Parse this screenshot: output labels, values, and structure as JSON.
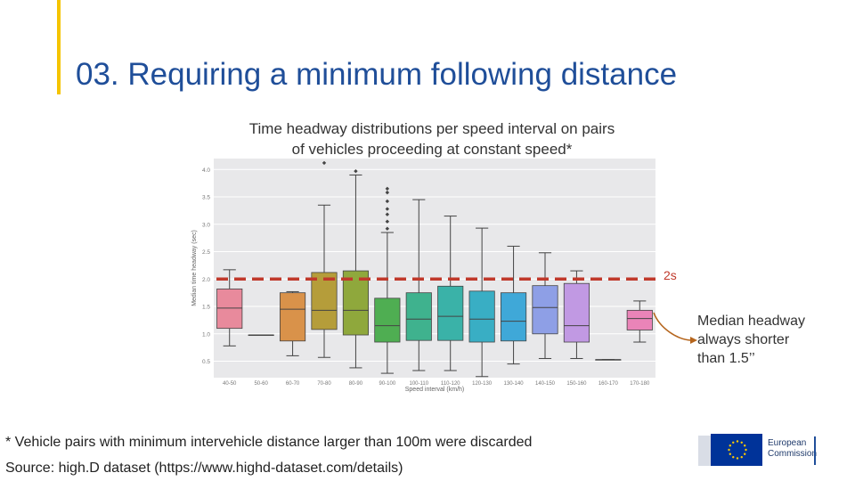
{
  "slide": {
    "title": "03. Requiring a minimum following distance",
    "caption_line1": "Time headway distributions per speed interval on pairs",
    "caption_line2": "of vehicles proceeding at constant speed*",
    "threshold_label": "2s",
    "callout_line1": "Median headway",
    "callout_line2": "always shorter",
    "callout_line3": "than 1.5’’",
    "footnote": "* Vehicle pairs with minimum intervehicle distance larger than 100m were discarded",
    "source": "Source: high.D dataset (https://www.highd-dataset.com/details)",
    "logo_line1": "European",
    "logo_line2": "Commission"
  },
  "chart_data": {
    "type": "box",
    "xlabel": "Speed interval (km/h)",
    "ylabel": "Median time headway (sec)",
    "ylim": [
      0.2,
      4.2
    ],
    "yticks": [
      "0.5",
      "1.0",
      "1.5",
      "2.0",
      "2.5",
      "3.0",
      "3.5",
      "4.0"
    ],
    "ytick_values": [
      0.5,
      1.0,
      1.5,
      2.0,
      2.5,
      3.0,
      3.5,
      4.0
    ],
    "grid": true,
    "threshold": 2.0,
    "categories": [
      "40-50",
      "50-60",
      "60-70",
      "70-80",
      "80-90",
      "90-100",
      "100-110",
      "110-120",
      "120-130",
      "130-140",
      "140-150",
      "150-160",
      "160-170",
      "170-180"
    ],
    "boxes": [
      {
        "min": 0.78,
        "q1": 1.1,
        "median": 1.47,
        "q3": 1.82,
        "max": 2.17,
        "outliers": [],
        "color": "#e88a9c"
      },
      {
        "min": 0.98,
        "q1": 0.98,
        "median": 0.98,
        "q3": 0.98,
        "max": 0.98,
        "outliers": [],
        "color": "#e39a5a"
      },
      {
        "min": 0.6,
        "q1": 0.87,
        "median": 1.45,
        "q3": 1.75,
        "max": 1.77,
        "outliers": [],
        "color": "#d9924a"
      },
      {
        "min": 0.57,
        "q1": 1.08,
        "median": 1.43,
        "q3": 2.12,
        "max": 3.35,
        "outliers": [
          4.12
        ],
        "color": "#b59d3a"
      },
      {
        "min": 0.38,
        "q1": 0.98,
        "median": 1.43,
        "q3": 2.15,
        "max": 3.9,
        "outliers": [
          3.97
        ],
        "color": "#8fa83c"
      },
      {
        "min": 0.28,
        "q1": 0.85,
        "median": 1.15,
        "q3": 1.65,
        "max": 2.85,
        "outliers": [
          2.92,
          3.05,
          3.18,
          3.28,
          3.42,
          3.58,
          3.65
        ],
        "color": "#4fae52"
      },
      {
        "min": 0.33,
        "q1": 0.88,
        "median": 1.27,
        "q3": 1.75,
        "max": 3.45,
        "outliers": [],
        "color": "#3fb28e"
      },
      {
        "min": 0.33,
        "q1": 0.88,
        "median": 1.32,
        "q3": 1.87,
        "max": 3.15,
        "outliers": [],
        "color": "#3ab2a8"
      },
      {
        "min": 0.22,
        "q1": 0.85,
        "median": 1.27,
        "q3": 1.78,
        "max": 2.93,
        "outliers": [],
        "color": "#39aec4"
      },
      {
        "min": 0.45,
        "q1": 0.87,
        "median": 1.23,
        "q3": 1.75,
        "max": 2.6,
        "outliers": [],
        "color": "#3fa8d8"
      },
      {
        "min": 0.55,
        "q1": 1.0,
        "median": 1.48,
        "q3": 1.88,
        "max": 2.48,
        "outliers": [],
        "color": "#8e9fe6"
      },
      {
        "min": 0.55,
        "q1": 0.85,
        "median": 1.15,
        "q3": 1.92,
        "max": 2.15,
        "outliers": [],
        "color": "#c199e3"
      },
      {
        "min": 0.53,
        "q1": 0.53,
        "median": 0.53,
        "q3": 0.53,
        "max": 0.53,
        "outliers": [],
        "color": "#e08fd6"
      },
      {
        "min": 0.85,
        "q1": 1.07,
        "median": 1.28,
        "q3": 1.43,
        "max": 1.6,
        "outliers": [],
        "color": "#ea84b8"
      }
    ]
  },
  "colors": {
    "title": "#1f4e99",
    "accent": "#f5c400",
    "threshold_line": "#c0392b",
    "callout_arrow": "#b5651d"
  },
  "icons": {
    "logo": "eu-flag-icon"
  }
}
